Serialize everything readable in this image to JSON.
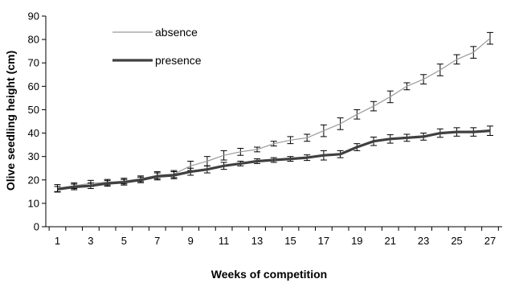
{
  "chart_data": {
    "type": "line",
    "title": "",
    "xlabel": "Weeks of competition",
    "ylabel": "Olive seedling height (cm)",
    "ylim": [
      0,
      90
    ],
    "yticks": [
      0,
      10,
      20,
      30,
      40,
      50,
      60,
      70,
      80,
      90
    ],
    "xlim": [
      1,
      27
    ],
    "xticks": [
      1,
      3,
      5,
      7,
      9,
      11,
      13,
      15,
      17,
      19,
      21,
      23,
      25,
      27
    ],
    "x": [
      1,
      2,
      3,
      4,
      5,
      6,
      7,
      8,
      9,
      10,
      11,
      12,
      13,
      14,
      15,
      16,
      17,
      18,
      19,
      20,
      21,
      22,
      23,
      24,
      25,
      26,
      27
    ],
    "legend_position": "top-left",
    "grid": false,
    "series": [
      {
        "name": "absence",
        "color": "#9a9a9a",
        "line_width": "thin",
        "values": [
          16.5,
          17.5,
          18.5,
          19,
          19.5,
          20.5,
          22,
          22.5,
          26,
          28,
          30.5,
          32,
          33,
          35.5,
          37,
          38,
          41,
          44,
          48,
          51.5,
          55.5,
          60,
          63,
          67,
          71.5,
          74.5,
          80.5
        ],
        "errors": [
          1.5,
          1.2,
          1.3,
          1.2,
          1.2,
          1.2,
          1.5,
          1.5,
          2,
          2,
          2,
          1.5,
          1,
          1,
          1.5,
          1.5,
          2.5,
          2.5,
          2,
          2,
          2.5,
          1.5,
          2,
          2.5,
          2,
          2.5,
          2.5
        ]
      },
      {
        "name": "presence",
        "color": "#404040",
        "line_width": "thick",
        "values": [
          16,
          17,
          17.5,
          18.5,
          19,
          20,
          21.5,
          22,
          23.5,
          24.5,
          26,
          27,
          28,
          28.5,
          29,
          29.5,
          30.5,
          31,
          34,
          36.5,
          37.5,
          38,
          38.5,
          40,
          40.5,
          40.5,
          41
        ],
        "errors": [
          1.2,
          1.2,
          1.2,
          1.2,
          1.2,
          1.2,
          1.5,
          1.5,
          1.5,
          1.5,
          1.5,
          1,
          1,
          1,
          1,
          1.2,
          2,
          1.5,
          1.5,
          1.8,
          1.8,
          1.5,
          1.5,
          1.8,
          1.8,
          1.8,
          2
        ]
      }
    ]
  }
}
